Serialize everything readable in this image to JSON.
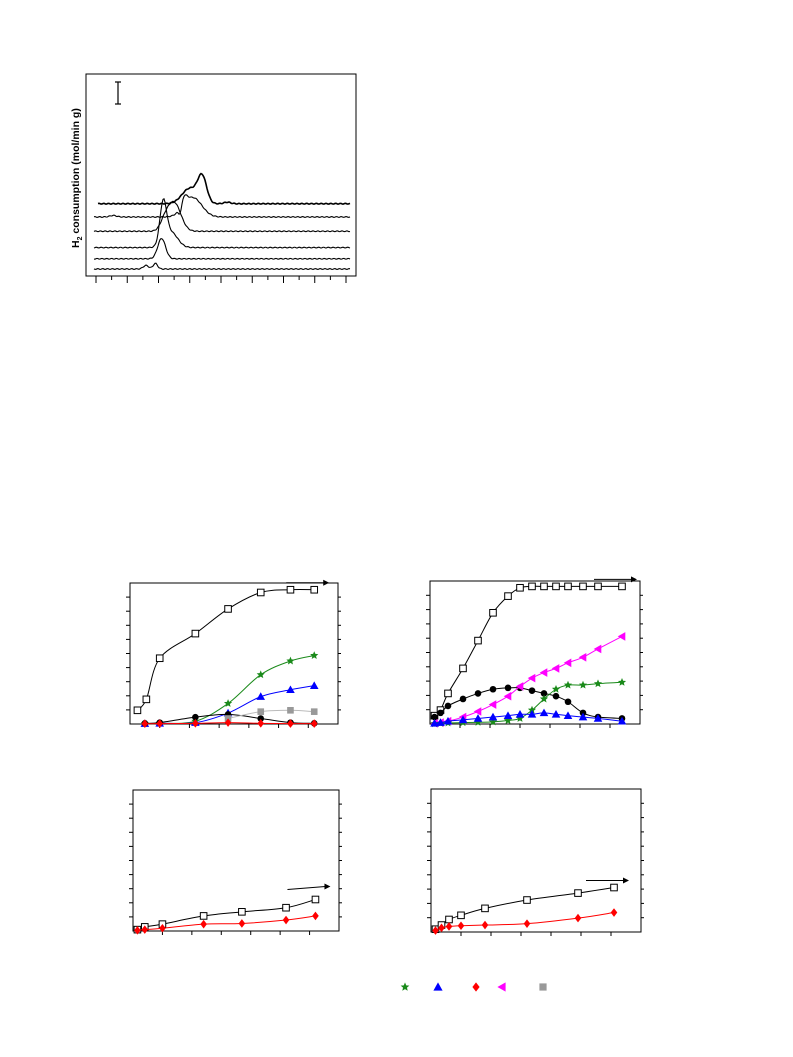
{
  "figure": {
    "tpr_panel": {
      "ylabel": "H",
      "ylabel_sub": "2",
      "ylabel_rest": " consumption (mol/min g)"
    }
  },
  "chart_data": [
    {
      "type": "line",
      "panel": "tpr",
      "title": "",
      "xlabel": "",
      "ylabel": "H2 consumption (mol/min g)",
      "xlim": [
        0,
        16
      ],
      "x_ticks": 16,
      "note": "six vertically stacked traces, no tick labels printed",
      "series": [
        {
          "offset": 0.0,
          "peaks": [
            [
              3.2,
              0.35,
              0.25
            ],
            [
              3.8,
              0.55,
              0.2
            ]
          ]
        },
        {
          "offset": 1.0,
          "peaks": [
            [
              4.2,
              2.0,
              0.35
            ]
          ]
        },
        {
          "offset": 2.1,
          "peaks": [
            [
              4.3,
              4.0,
              0.3
            ],
            [
              4.8,
              1.5,
              0.6
            ]
          ]
        },
        {
          "offset": 3.7,
          "peaks": [
            [
              5.0,
              2.8,
              0.6
            ],
            [
              4.4,
              0.8,
              0.4
            ]
          ]
        },
        {
          "offset": 5.1,
          "peaks": [
            [
              6.2,
              1.9,
              0.8
            ],
            [
              5.6,
              1.0,
              0.3
            ],
            [
              1.1,
              0.15,
              0.3
            ]
          ],
          "dip": [
            5.4,
            -0.9,
            0.15
          ]
        },
        {
          "offset": 6.4,
          "peaks": [
            [
              6.8,
              2.5,
              0.4
            ],
            [
              6.0,
              1.5,
              0.7
            ],
            [
              8.4,
              0.15,
              0.3
            ]
          ]
        }
      ]
    },
    {
      "type": "line",
      "panel": "a",
      "title": "",
      "xlim": [
        0,
        7
      ],
      "ylim": [
        0,
        100
      ],
      "series": [
        {
          "marker": "open-square",
          "color": "#000000",
          "x": [
            0.25,
            0.55,
            1.0,
            2.2,
            3.3,
            4.4,
            5.4,
            6.2
          ],
          "y": [
            10,
            18,
            48,
            66,
            84,
            96,
            98,
            98
          ],
          "arrow": true
        },
        {
          "marker": "star",
          "color": "#1a8a1a",
          "x": [
            0.5,
            1.0,
            2.2,
            3.3,
            4.4,
            5.4,
            6.2
          ],
          "y": [
            0.3,
            0.5,
            2,
            15,
            36,
            46,
            50
          ]
        },
        {
          "marker": "triangle",
          "color": "#0000ff",
          "x": [
            0.5,
            1.0,
            2.2,
            3.3,
            4.4,
            5.4,
            6.2
          ],
          "y": [
            0.3,
            0.5,
            1,
            8,
            20,
            25,
            28
          ]
        },
        {
          "marker": "filled-circle",
          "color": "#000000",
          "x": [
            0.5,
            1.0,
            2.2,
            3.3,
            4.4,
            5.4,
            6.2
          ],
          "y": [
            0.5,
            1,
            5,
            7,
            4,
            1,
            0.5
          ]
        },
        {
          "marker": "filled-square",
          "color": "#999999",
          "x": [
            3.3,
            4.4,
            5.4,
            6.2
          ],
          "y": [
            4,
            9,
            10,
            9
          ]
        },
        {
          "marker": "diamond",
          "color": "#ff0000",
          "x": [
            0.5,
            1.0,
            2.2,
            3.3,
            4.4,
            5.4,
            6.2
          ],
          "y": [
            0.2,
            0.3,
            0.5,
            1,
            0.5,
            0.3,
            0.3
          ]
        }
      ]
    },
    {
      "type": "line",
      "panel": "b",
      "title": "",
      "xlim": [
        0,
        7
      ],
      "ylim": [
        0,
        100
      ],
      "series": [
        {
          "marker": "open-square",
          "color": "#000000",
          "x": [
            0.15,
            0.35,
            0.6,
            1.1,
            1.6,
            2.1,
            2.6,
            3.0,
            3.4,
            3.8,
            4.2,
            4.6,
            5.1,
            5.6,
            6.4
          ],
          "y": [
            6,
            10,
            22,
            40,
            60,
            80,
            92,
            98,
            99,
            99,
            99,
            99,
            99,
            99,
            99
          ],
          "arrow": true
        },
        {
          "marker": "filled-circle",
          "color": "#000000",
          "x": [
            0.15,
            0.35,
            0.6,
            1.1,
            1.6,
            2.1,
            2.6,
            3.0,
            3.4,
            3.8,
            4.2,
            4.6,
            5.1,
            5.6,
            6.4
          ],
          "y": [
            5,
            8,
            13,
            18,
            22,
            25,
            26,
            26,
            24,
            22,
            20,
            16,
            8,
            5,
            4
          ]
        },
        {
          "marker": "left-triangle",
          "color": "#ff00ff",
          "x": [
            0.15,
            0.35,
            0.6,
            1.1,
            1.6,
            2.1,
            2.6,
            3.0,
            3.4,
            3.8,
            4.2,
            4.6,
            5.1,
            5.6,
            6.4
          ],
          "y": [
            0.5,
            1,
            2,
            5,
            9,
            14,
            20,
            27,
            33,
            37,
            40,
            44,
            48,
            54,
            63
          ]
        },
        {
          "marker": "star",
          "color": "#1a8a1a",
          "x": [
            0.15,
            0.35,
            0.6,
            1.1,
            1.6,
            2.1,
            2.6,
            3.0,
            3.4,
            3.8,
            4.2,
            4.6,
            5.1,
            5.6,
            6.4
          ],
          "y": [
            0.2,
            0.5,
            0.8,
            1,
            1.2,
            1.5,
            2.5,
            4,
            10,
            18,
            25,
            28,
            28,
            29,
            30
          ]
        },
        {
          "marker": "triangle",
          "color": "#0000ff",
          "x": [
            0.15,
            0.35,
            0.6,
            1.1,
            1.6,
            2.1,
            2.6,
            3.0,
            3.4,
            3.8,
            4.2,
            4.6,
            5.1,
            5.6,
            6.4
          ],
          "y": [
            0.5,
            1,
            2,
            3,
            4,
            5,
            6,
            7,
            7,
            8,
            7,
            6,
            5,
            4,
            2
          ]
        }
      ]
    },
    {
      "type": "line",
      "panel": "c",
      "title": "",
      "xlim": [
        0,
        7
      ],
      "ylim": [
        0,
        100
      ],
      "series": [
        {
          "marker": "open-square",
          "color": "#000000",
          "x": [
            0.15,
            0.4,
            1.0,
            2.4,
            3.7,
            5.2,
            6.2
          ],
          "y": [
            1,
            3,
            5,
            11,
            14,
            17,
            23
          ],
          "arrow": true
        },
        {
          "marker": "diamond",
          "color": "#ff0000",
          "x": [
            0.15,
            0.4,
            1.0,
            2.4,
            3.7,
            5.2,
            6.2
          ],
          "y": [
            0.5,
            1,
            2,
            5,
            5.5,
            8,
            11
          ]
        }
      ]
    },
    {
      "type": "line",
      "panel": "d",
      "title": "",
      "xlim": [
        0,
        7
      ],
      "ylim": [
        0,
        100
      ],
      "series": [
        {
          "marker": "open-square",
          "color": "#000000",
          "x": [
            0.15,
            0.35,
            0.6,
            1.0,
            1.8,
            3.2,
            4.9,
            6.1
          ],
          "y": [
            2,
            5,
            9,
            12,
            17,
            23,
            28,
            32
          ],
          "arrow": true
        },
        {
          "marker": "diamond",
          "color": "#ff0000",
          "x": [
            0.15,
            0.35,
            0.6,
            1.0,
            1.8,
            3.2,
            4.9,
            6.1
          ],
          "y": [
            1,
            3,
            4,
            4.5,
            5,
            6,
            10,
            14
          ]
        }
      ]
    }
  ],
  "legend_row": [
    {
      "marker": "star",
      "color": "#1a8a1a"
    },
    {
      "marker": "triangle",
      "color": "#0000ff"
    },
    {
      "marker": "diamond",
      "color": "#ff0000"
    },
    {
      "marker": "left-triangle",
      "color": "#ff00ff"
    },
    {
      "marker": "filled-square",
      "color": "#999999"
    }
  ]
}
